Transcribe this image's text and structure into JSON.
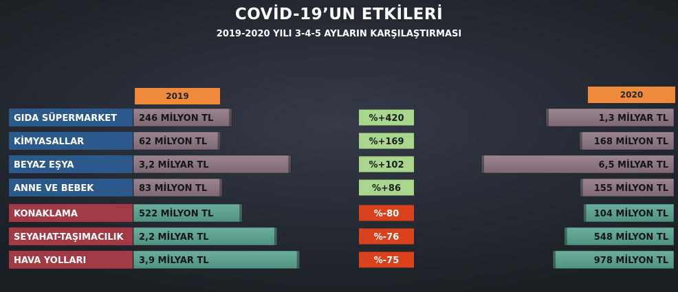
{
  "title": "COVİD-19’UN ETKİLERİ",
  "subtitle": "2019-2020 YILI 3-4-5 AYLARIN KARŞILAŞTIRMASI",
  "years": {
    "left": "2019",
    "right": "2020"
  },
  "colors": {
    "increase_label": "#2b5a8a",
    "decrease_label": "#a23a46",
    "increase_bar": "#7d6873",
    "decrease_bar": "#4f9282",
    "increase_badge": "#a9d58c",
    "decrease_badge": "#d9421c",
    "year_tag": "#ee8a3a"
  },
  "chart_data": {
    "type": "bar",
    "unit": "TL",
    "categories": [
      "GIDA SÜPERMARKET",
      "KİMYASALLAR",
      "BEYAZ EŞYA",
      "ANNE VE BEBEK",
      "KONAKLAMA",
      "SEYAHAT-TAŞIMACILIK",
      "HAVA YOLLARI"
    ],
    "series": [
      {
        "name": "2019",
        "values": [
          246000000,
          62000000,
          3200000000,
          83000000,
          522000000,
          2200000000,
          3900000000
        ],
        "labels": [
          "246 MİLYON TL",
          "62 MİLYON TL",
          "3,2 MİLYAR TL",
          "83 MİLYON TL",
          "522 MİLYON TL",
          "2,2 MİLYAR TL",
          "3,9 MİLYAR TL"
        ]
      },
      {
        "name": "2020",
        "values": [
          1300000000,
          168000000,
          6500000000,
          155000000,
          104000000,
          548000000,
          978000000
        ],
        "labels": [
          "1,3 MİLYAR TL",
          "168 MİLYON TL",
          "6,5 MİLYAR TL",
          "155 MİLYON TL",
          "104 MİLYON TL",
          "548 MİLYON TL",
          "978 MİLYON TL"
        ]
      }
    ],
    "changes": [
      "%+420",
      "%+169",
      "%+102",
      "%+86",
      "%-80",
      "%-76",
      "%-75"
    ],
    "direction": [
      "up",
      "up",
      "up",
      "up",
      "down",
      "down",
      "down"
    ]
  }
}
